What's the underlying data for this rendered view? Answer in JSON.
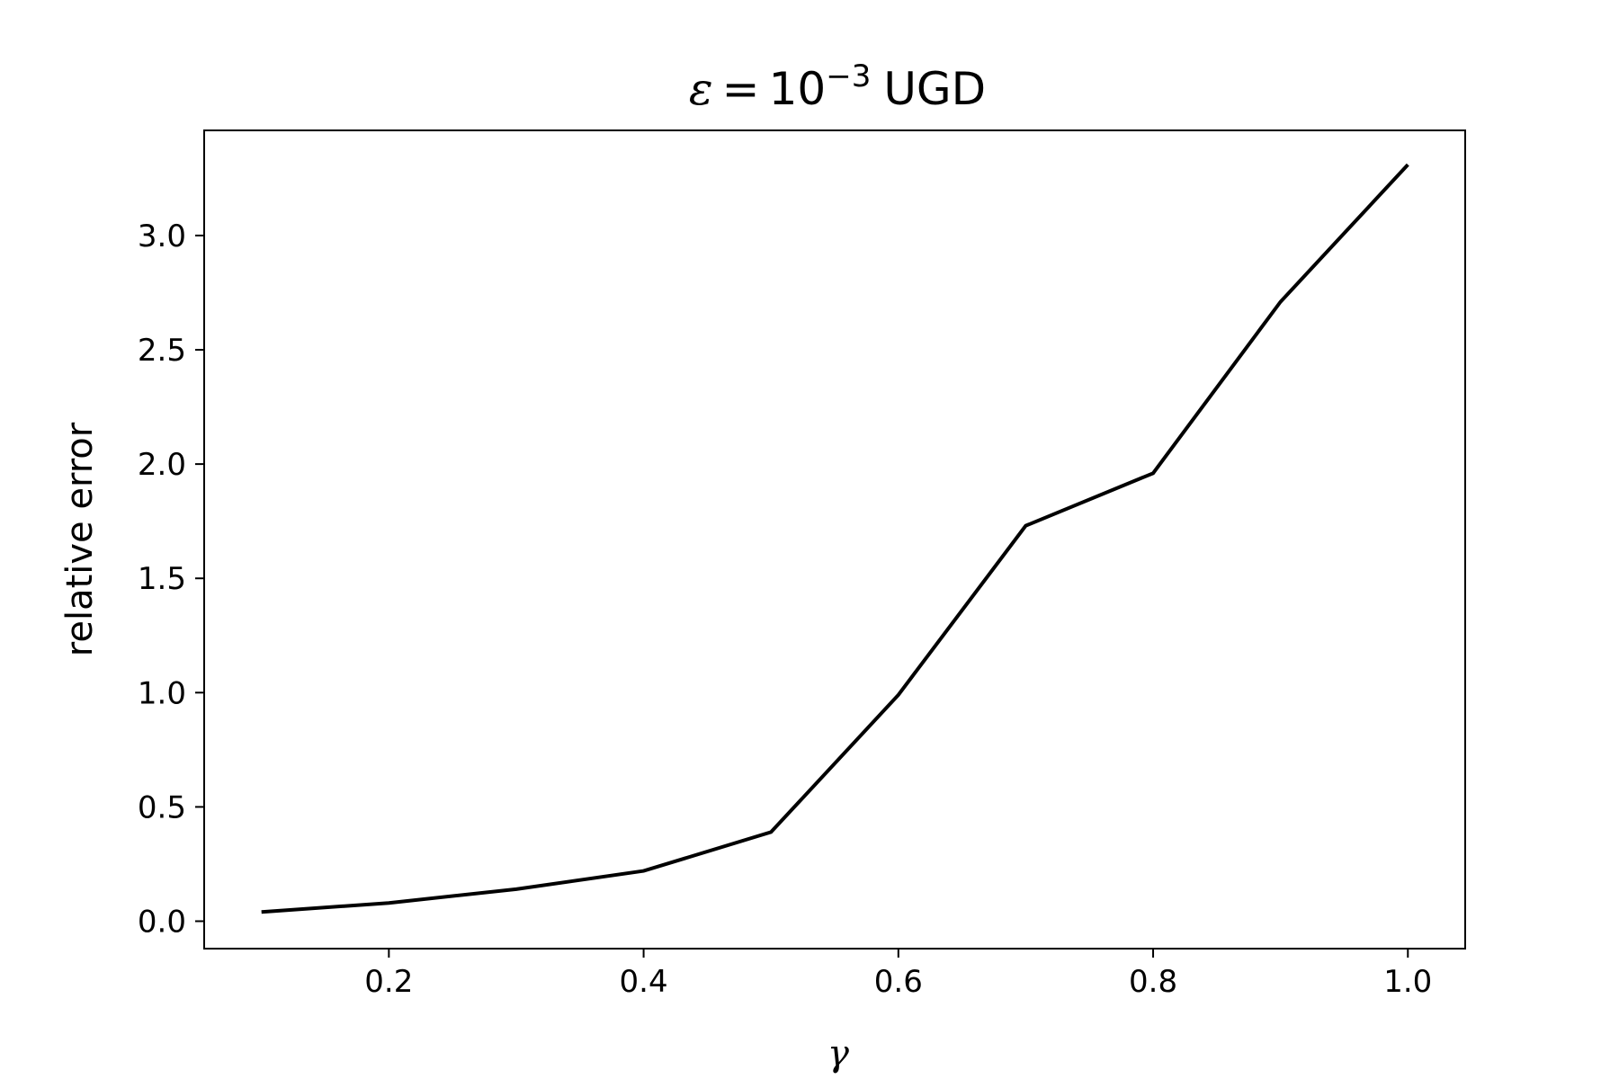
{
  "chart_data": {
    "type": "line",
    "title": {
      "symbol": "ε",
      "equals": "=",
      "base": "10",
      "exponent": "−3",
      "suffix": "UGD"
    },
    "xlabel": "γ",
    "ylabel": "relative error",
    "xlim": [
      0.055,
      1.045
    ],
    "ylim": [
      -0.12,
      3.46
    ],
    "xticks": [
      0.2,
      0.4,
      0.6,
      0.8,
      1.0
    ],
    "xtick_labels": [
      "0.2",
      "0.4",
      "0.6",
      "0.8",
      "1.0"
    ],
    "yticks": [
      0.0,
      0.5,
      1.0,
      1.5,
      2.0,
      2.5,
      3.0
    ],
    "ytick_labels": [
      "0.0",
      "0.5",
      "1.0",
      "1.5",
      "2.0",
      "2.5",
      "3.0"
    ],
    "grid": false,
    "line_color": "#000000",
    "x": [
      0.1,
      0.2,
      0.3,
      0.4,
      0.5,
      0.6,
      0.7,
      0.8,
      0.9,
      1.0
    ],
    "y": [
      0.04,
      0.08,
      0.14,
      0.22,
      0.39,
      0.99,
      1.73,
      1.96,
      2.71,
      3.31
    ]
  }
}
